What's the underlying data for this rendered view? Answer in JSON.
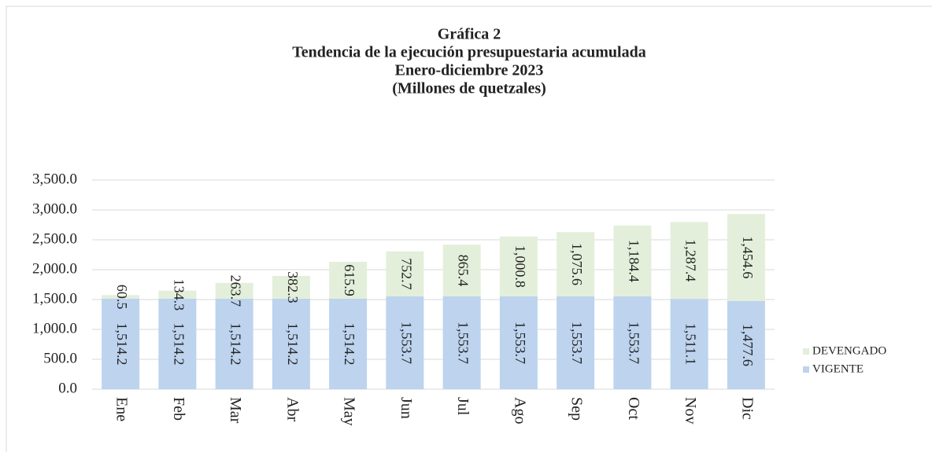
{
  "chart_data": {
    "type": "stacked_bar",
    "title": [
      "Gráfica 2",
      "Tendencia de la ejecución presupuestaria acumulada",
      "Enero-diciembre 2023",
      "(Millones de quetzales)"
    ],
    "categories": [
      "Ene",
      "Feb",
      "Mar",
      "Abr",
      "May",
      "Jun",
      "Jul",
      "Ago",
      "Sep",
      "Oct",
      "Nov",
      "Dic"
    ],
    "series": [
      {
        "name": "VIGENTE",
        "color": "#bdd3ee",
        "values": [
          1514.2,
          1514.2,
          1514.2,
          1514.2,
          1514.2,
          1553.7,
          1553.7,
          1553.7,
          1553.7,
          1553.7,
          1511.1,
          1477.6
        ],
        "value_labels": [
          "1,514.2",
          "1,514.2",
          "1,514.2",
          "1,514.2",
          "1,514.2",
          "1,553.7",
          "1,553.7",
          "1,553.7",
          "1,553.7",
          "1,553.7",
          "1,511.1",
          "1,477.6"
        ]
      },
      {
        "name": "DEVENGADO",
        "color": "#e3efda",
        "values": [
          60.5,
          134.3,
          263.7,
          382.3,
          615.9,
          752.7,
          865.4,
          1000.8,
          1075.6,
          1184.4,
          1287.4,
          1454.6
        ],
        "value_labels": [
          "60.5",
          "134.3",
          "263.7",
          "382.3",
          "615.9",
          "752.7",
          "865.4",
          "1,000.8",
          "1,075.6",
          "1,184.4",
          "1,287.4",
          "1,454.6"
        ]
      }
    ],
    "ylim": [
      0,
      3500
    ],
    "yticks": [
      {
        "value": 0,
        "label": "0.0"
      },
      {
        "value": 500,
        "label": "500.0"
      },
      {
        "value": 1000,
        "label": "1,000.0"
      },
      {
        "value": 1500,
        "label": "1,500.0"
      },
      {
        "value": 2000,
        "label": "2,000.0"
      },
      {
        "value": 2500,
        "label": "2,500.0"
      },
      {
        "value": 3000,
        "label": "3,000.0"
      },
      {
        "value": 3500,
        "label": "3,500.0"
      }
    ],
    "grid": true,
    "legend": "right"
  }
}
